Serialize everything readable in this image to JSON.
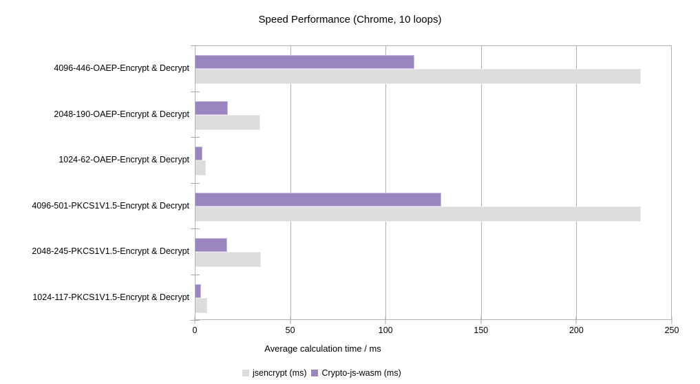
{
  "chart_data": {
    "type": "bar",
    "orientation": "horizontal",
    "title": "Speed Performance (Chrome, 10 loops)",
    "xlabel": "Average calculation time / ms",
    "xlim": [
      0,
      250
    ],
    "xticks": [
      0,
      50,
      100,
      150,
      200,
      250
    ],
    "grid": true,
    "legend_position": "bottom",
    "categories": [
      "4096-446-OAEP-Encrypt & Decrypt",
      "2048-190-OAEP-Encrypt & Decrypt",
      "1024-62-OAEP-Encrypt & Decrypt",
      "4096-501-PKCS1V1.5-Encrypt & Decrypt",
      "2048-245-PKCS1V1.5-Encrypt & Decrypt",
      "1024-117-PKCS1V1.5-Encrypt & Decrypt"
    ],
    "series": [
      {
        "name": "jsencrypt (ms)",
        "color": "#dcdcdc",
        "border_color": "#ebebeb",
        "values": [
          234,
          34,
          5.5,
          234,
          34.5,
          6.3
        ]
      },
      {
        "name": "Crypto-js-wasm (ms)",
        "color": "#9a85c1",
        "border_color": "#c6b8de",
        "values": [
          115,
          17,
          3.7,
          129,
          16.5,
          3
        ]
      }
    ]
  },
  "colors": {
    "grid": "#b3b3b3",
    "axis": "#b3b3b3",
    "text": "#000000",
    "background": "#ffffff"
  }
}
